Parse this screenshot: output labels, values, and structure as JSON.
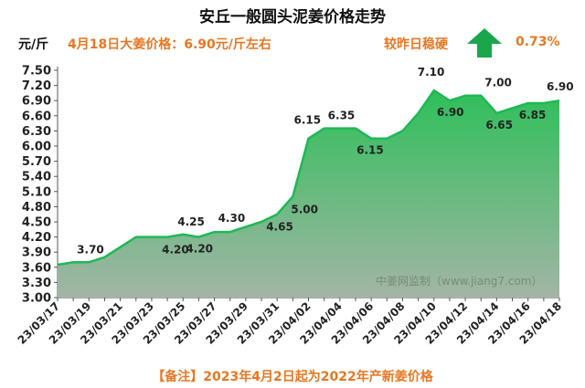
{
  "header": {
    "title": "安丘一般圆头泥姜价格走势",
    "unit": "元/斤",
    "price_text": "4月18日大姜价格：6.90元/斤左右",
    "trend_text": "较昨日稳硬",
    "change_pct": "0.73%",
    "arrow_icon": "up-arrow-icon"
  },
  "watermark": "中姜网监制（www.jiang7.com）",
  "footnote": "【备注】2023年4月2日起为2022年产新姜价格",
  "colors": {
    "line": "#1db954",
    "fill_top": "#2fbf5a",
    "fill_bottom": "#9fb4a2",
    "accent": "#e87722",
    "arrow": "#1aa64a"
  },
  "chart_data": {
    "type": "area",
    "title": "安丘一般圆头泥姜价格走势",
    "ylabel": "元/斤",
    "ylim": [
      3.0,
      7.5
    ],
    "yticks": [
      "3.00",
      "3.30",
      "3.60",
      "3.90",
      "4.20",
      "4.50",
      "4.80",
      "5.10",
      "5.40",
      "5.70",
      "6.00",
      "6.30",
      "6.60",
      "6.90",
      "7.20",
      "7.50"
    ],
    "x": [
      "23/03/17",
      "23/03/18",
      "23/03/19",
      "23/03/20",
      "23/03/21",
      "23/03/22",
      "23/03/23",
      "23/03/24",
      "23/03/25",
      "23/03/26",
      "23/03/27",
      "23/03/28",
      "23/03/29",
      "23/03/30",
      "23/03/31",
      "23/04/01",
      "23/04/02",
      "23/04/03",
      "23/04/04",
      "23/04/05",
      "23/04/06",
      "23/04/07",
      "23/04/08",
      "23/04/09",
      "23/04/10",
      "23/04/11",
      "23/04/12",
      "23/04/13",
      "23/04/14",
      "23/04/15",
      "23/04/16",
      "23/04/17",
      "23/04/18"
    ],
    "xtick_labels": [
      "23/03/17",
      "23/03/19",
      "23/03/21",
      "23/03/23",
      "23/03/25",
      "23/03/27",
      "23/03/29",
      "23/03/31",
      "23/04/02",
      "23/04/04",
      "23/04/06",
      "23/04/08",
      "23/04/10",
      "23/04/12",
      "23/04/14",
      "23/04/16",
      "23/04/18"
    ],
    "values": [
      3.65,
      3.7,
      3.7,
      3.8,
      4.0,
      4.2,
      4.2,
      4.2,
      4.25,
      4.2,
      4.3,
      4.3,
      4.4,
      4.5,
      4.65,
      5.0,
      6.15,
      6.35,
      6.35,
      6.35,
      6.15,
      6.15,
      6.3,
      6.65,
      7.1,
      6.9,
      7.0,
      7.0,
      6.65,
      6.75,
      6.85,
      6.85,
      6.9
    ],
    "data_labels": [
      {
        "index": 1,
        "text": "3.70"
      },
      {
        "index": 7,
        "text": "4.20"
      },
      {
        "index": 8,
        "text": "4.25"
      },
      {
        "index": 9,
        "text": "4.20"
      },
      {
        "index": 10,
        "text": "4.30"
      },
      {
        "index": 14,
        "text": "4.65"
      },
      {
        "index": 15,
        "text": "5.00"
      },
      {
        "index": 16,
        "text": "6.15"
      },
      {
        "index": 17,
        "text": "6.35"
      },
      {
        "index": 20,
        "text": "6.15"
      },
      {
        "index": 24,
        "text": "7.10"
      },
      {
        "index": 25,
        "text": "6.90"
      },
      {
        "index": 27,
        "text": "7.00"
      },
      {
        "index": 28,
        "text": "6.65"
      },
      {
        "index": 30,
        "text": "6.85"
      },
      {
        "index": 32,
        "text": "6.90"
      }
    ],
    "grid": false,
    "legend": "none"
  }
}
